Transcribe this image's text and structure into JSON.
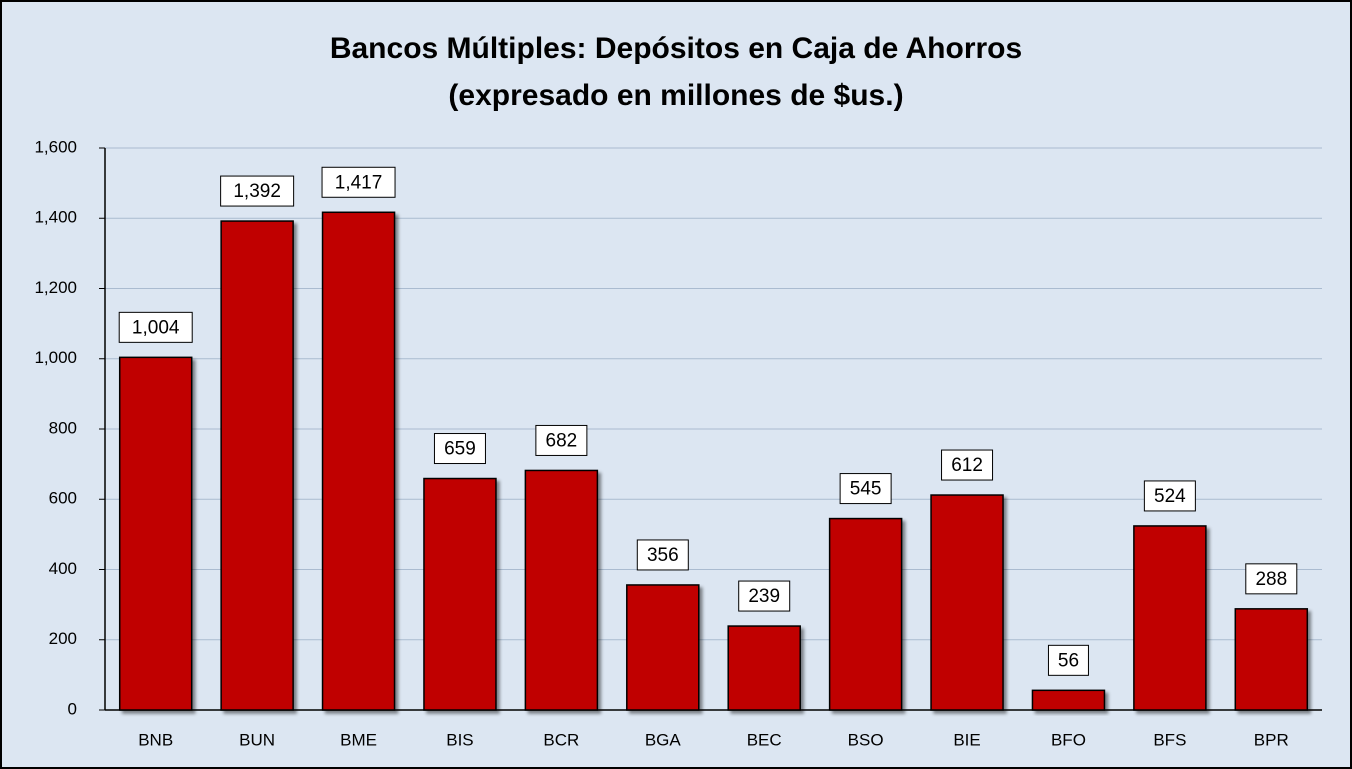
{
  "chart_data": {
    "type": "bar",
    "title": [
      "Bancos Múltiples: Depósitos en Caja de Ahorros",
      "(expresado en millones de $us.)"
    ],
    "categories": [
      "BNB",
      "BUN",
      "BME",
      "BIS",
      "BCR",
      "BGA",
      "BEC",
      "BSO",
      "BIE",
      "BFO",
      "BFS",
      "BPR"
    ],
    "values": [
      1004,
      1392,
      1417,
      659,
      682,
      356,
      239,
      545,
      612,
      56,
      524,
      288
    ],
    "value_labels": [
      "1,004",
      "1,392",
      "1,417",
      "659",
      "682",
      "356",
      "239",
      "545",
      "612",
      "56",
      "524",
      "288"
    ],
    "color": "#c00000",
    "ylim": [
      0,
      1600
    ],
    "yticks": [
      0,
      200,
      400,
      600,
      800,
      {
        "value": 1000,
        "label": "1,000"
      },
      {
        "value": 1200,
        "label": "1,200"
      },
      {
        "value": 1400,
        "label": "1,400"
      },
      {
        "value": 1600,
        "label": "1,600"
      }
    ],
    "grid": true
  }
}
